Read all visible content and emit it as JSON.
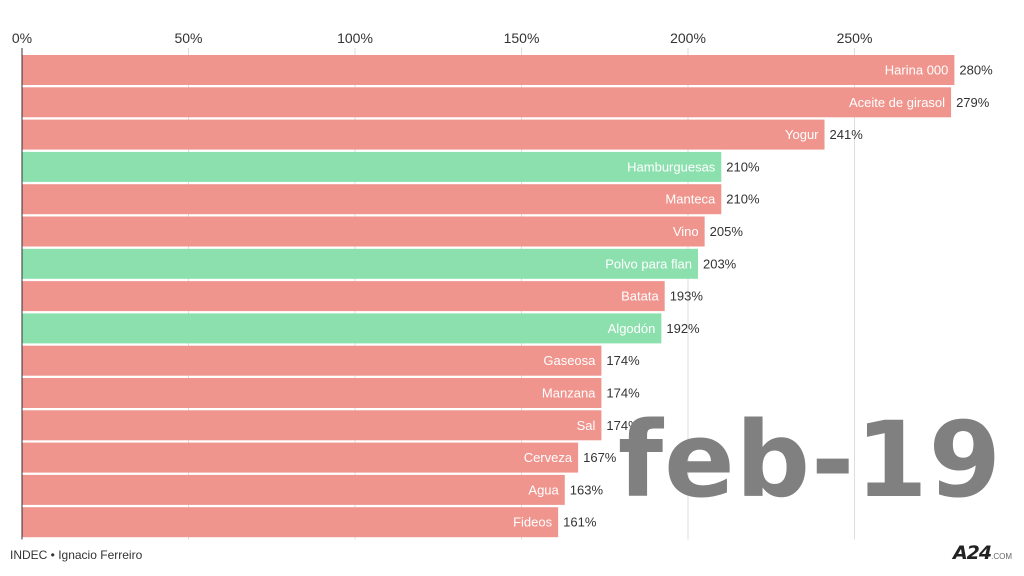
{
  "chart_data": {
    "type": "bar",
    "orientation": "horizontal",
    "x_ticks": [
      "0%",
      "50%",
      "100%",
      "150%",
      "200%",
      "250%"
    ],
    "x_tick_values": [
      0,
      50,
      100,
      150,
      200,
      250
    ],
    "xlim": [
      0,
      300
    ],
    "grid": true,
    "categories": [
      "Harina 000",
      "Aceite de girasol",
      "Yogur",
      "Hamburguesas",
      "Manteca",
      "Vino",
      "Polvo para flan",
      "Batata",
      "Algodón",
      "Gaseosa",
      "Manzana",
      "Sal",
      "Cerveza",
      "Agua",
      "Fideos"
    ],
    "values": [
      280,
      279,
      241,
      210,
      210,
      205,
      203,
      193,
      192,
      174,
      174,
      174,
      167,
      163,
      161
    ],
    "value_labels": [
      "280%",
      "279%",
      "241%",
      "210%",
      "210%",
      "205%",
      "203%",
      "193%",
      "192%",
      "174%",
      "174%",
      "174%",
      "167%",
      "163%",
      "161%"
    ],
    "groups": [
      "red",
      "red",
      "red",
      "green",
      "red",
      "red",
      "green",
      "red",
      "green",
      "red",
      "red",
      "red",
      "red",
      "red",
      "red"
    ],
    "colors": {
      "red": "#ef958e",
      "green": "#8be0ad",
      "grid": "#dddddd",
      "axis": "#333333"
    },
    "period": "feb-19"
  },
  "footer": {
    "source": "INDEC • Ignacio Ferreiro",
    "logo_mark": "A24",
    "logo_suffix": ".COM"
  }
}
